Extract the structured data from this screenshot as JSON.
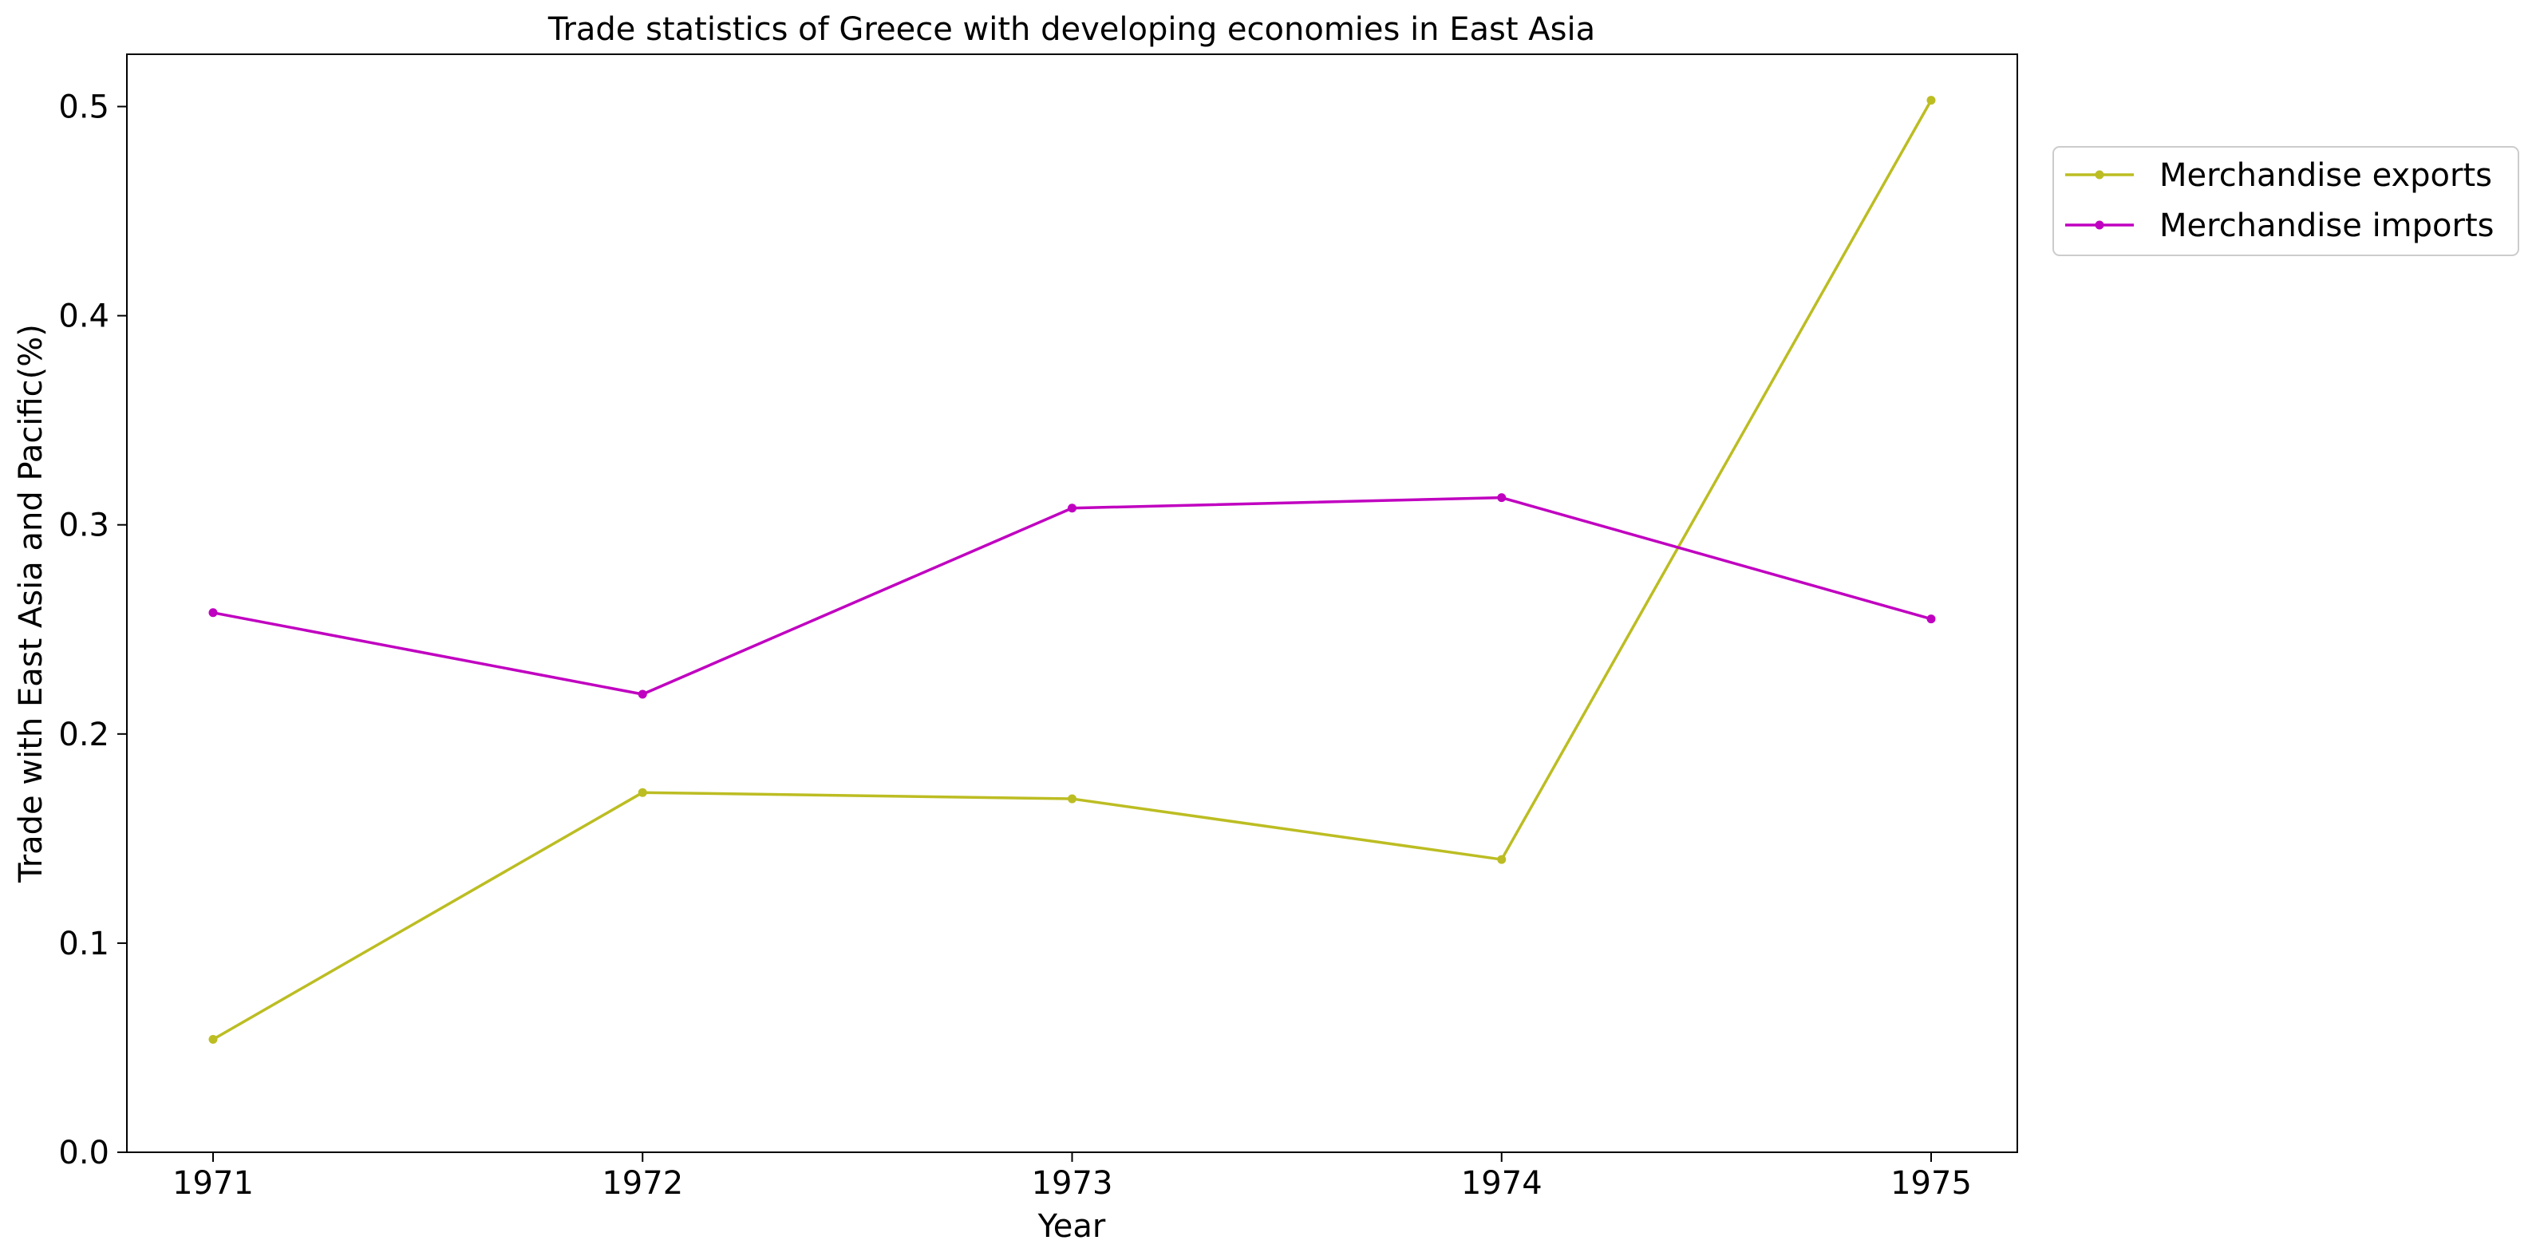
{
  "chart_data": {
    "type": "line",
    "title": "Trade statistics of Greece with developing economies in East Asia",
    "xlabel": "Year",
    "ylabel": "Trade with East Asia and Pacific(%)",
    "x": [
      "1971",
      "1972",
      "1973",
      "1974",
      "1975"
    ],
    "ylim": [
      0.0,
      0.525
    ],
    "yticks": [
      "0.0",
      "0.1",
      "0.2",
      "0.3",
      "0.4",
      "0.5"
    ],
    "grid": false,
    "legend_position": "outside-top-right",
    "series": [
      {
        "name": "Merchandise exports",
        "color": "#bcbd22",
        "values": [
          0.054,
          0.172,
          0.169,
          0.14,
          0.503
        ]
      },
      {
        "name": "Merchandise imports",
        "color": "#c000c0",
        "values": [
          0.258,
          0.219,
          0.308,
          0.313,
          0.255
        ]
      }
    ]
  }
}
